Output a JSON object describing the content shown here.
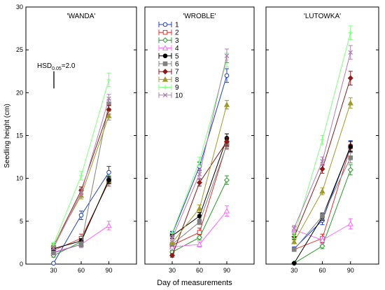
{
  "chart_data": {
    "type": "line",
    "xlabel": "Day of measurements",
    "ylabel": "Seedling height (cm)",
    "x": [
      30,
      60,
      90
    ],
    "x_ticks": [
      "30",
      "60",
      "90"
    ],
    "xlim": [
      0,
      120
    ],
    "ylim": [
      0,
      30
    ],
    "y_ticks": [
      0,
      5,
      10,
      15,
      20,
      25,
      30
    ],
    "grid": false,
    "legend_position": "top-left of middle panel",
    "hsd_label": "HSD0.05=2.0",
    "hsd_value": 2.0,
    "legend_series": [
      {
        "name": "1",
        "color": "#1f3fbf",
        "marker": "circle-open"
      },
      {
        "name": "2",
        "color": "#e03030",
        "marker": "square-open"
      },
      {
        "name": "3",
        "color": "#2a9a2a",
        "marker": "diamond-open"
      },
      {
        "name": "4",
        "color": "#ff66ff",
        "marker": "triangle-open"
      },
      {
        "name": "5",
        "color": "#000000",
        "marker": "circle"
      },
      {
        "name": "6",
        "color": "#808080",
        "marker": "square"
      },
      {
        "name": "7",
        "color": "#8b1a1a",
        "marker": "diamond"
      },
      {
        "name": "8",
        "color": "#a09a2a",
        "marker": "triangle"
      },
      {
        "name": "9",
        "color": "#7fff7f",
        "marker": "plus"
      },
      {
        "name": "10",
        "color": "#b07fb0",
        "marker": "cross"
      }
    ],
    "panels": [
      {
        "title": "'WANDA'",
        "series": [
          {
            "name": "1",
            "values": [
              0.1,
              5.7,
              10.7
            ],
            "err": [
              0.1,
              0.5,
              0.7
            ]
          },
          {
            "name": "2",
            "values": [
              1.6,
              3.0,
              9.6
            ],
            "err": [
              0.2,
              0.5,
              0.5
            ]
          },
          {
            "name": "3",
            "values": [
              1.0,
              2.6,
              9.9
            ],
            "err": [
              0.2,
              0.3,
              0.4
            ]
          },
          {
            "name": "4",
            "values": [
              1.4,
              2.3,
              4.5
            ],
            "err": [
              0.3,
              0.4,
              0.5
            ]
          },
          {
            "name": "5",
            "values": [
              1.8,
              2.7,
              9.8
            ],
            "err": [
              0.2,
              0.3,
              0.4
            ]
          },
          {
            "name": "6",
            "values": [
              1.3,
              2.3,
              18.7
            ],
            "err": [
              0.2,
              0.3,
              0.5
            ]
          },
          {
            "name": "7",
            "values": [
              2.1,
              8.6,
              18.0
            ],
            "err": [
              0.2,
              0.4,
              0.5
            ]
          },
          {
            "name": "8",
            "values": [
              2.2,
              8.0,
              17.3
            ],
            "err": [
              0.2,
              0.4,
              0.5
            ]
          },
          {
            "name": "9",
            "values": [
              2.3,
              10.3,
              21.5
            ],
            "err": [
              0.2,
              0.5,
              0.8
            ]
          },
          {
            "name": "10",
            "values": [
              1.9,
              8.3,
              19.3
            ],
            "err": [
              0.2,
              0.5,
              0.5
            ]
          }
        ]
      },
      {
        "title": "'WROBLE'",
        "series": [
          {
            "name": "1",
            "values": [
              3.5,
              11.4,
              22.0
            ],
            "err": [
              0.3,
              0.5,
              0.8
            ]
          },
          {
            "name": "2",
            "values": [
              2.2,
              3.7,
              14.0
            ],
            "err": [
              0.2,
              0.5,
              0.5
            ]
          },
          {
            "name": "3",
            "values": [
              1.4,
              3.1,
              9.8
            ],
            "err": [
              0.2,
              0.3,
              0.5
            ]
          },
          {
            "name": "4",
            "values": [
              2.0,
              2.3,
              6.2
            ],
            "err": [
              0.2,
              0.3,
              0.6
            ]
          },
          {
            "name": "5",
            "values": [
              3.3,
              5.6,
              14.7
            ],
            "err": [
              0.3,
              0.4,
              0.5
            ]
          },
          {
            "name": "6",
            "values": [
              2.3,
              4.9,
              13.9
            ],
            "err": [
              0.2,
              0.3,
              0.5
            ]
          },
          {
            "name": "7",
            "values": [
              1.0,
              9.5,
              14.3
            ],
            "err": [
              0.2,
              0.4,
              0.5
            ]
          },
          {
            "name": "8",
            "values": [
              2.5,
              6.5,
              18.6
            ],
            "err": [
              0.2,
              0.4,
              0.5
            ]
          },
          {
            "name": "9",
            "values": [
              3.6,
              12.0,
              23.8
            ],
            "err": [
              0.3,
              0.5,
              0.8
            ]
          },
          {
            "name": "10",
            "values": [
              3.0,
              10.5,
              24.3
            ],
            "err": [
              0.3,
              0.5,
              0.8
            ]
          }
        ]
      },
      {
        "title": "'LUTOWKA'",
        "series": [
          {
            "name": "1",
            "values": [
              1.8,
              5.1,
              13.8
            ],
            "err": [
              0.2,
              0.5,
              0.6
            ]
          },
          {
            "name": "2",
            "values": [
              1.7,
              3.0,
              13.7
            ],
            "err": [
              0.2,
              0.5,
              0.6
            ]
          },
          {
            "name": "3",
            "values": [
              0.1,
              2.1,
              11.0
            ],
            "err": [
              0.1,
              0.3,
              0.6
            ]
          },
          {
            "name": "4",
            "values": [
              4.0,
              2.8,
              4.7
            ],
            "err": [
              0.3,
              0.4,
              0.6
            ]
          },
          {
            "name": "5",
            "values": [
              0.1,
              5.5,
              13.7
            ],
            "err": [
              0.1,
              0.4,
              0.6
            ]
          },
          {
            "name": "6",
            "values": [
              1.7,
              5.6,
              12.4
            ],
            "err": [
              0.2,
              0.4,
              0.6
            ]
          },
          {
            "name": "7",
            "values": [
              3.2,
              11.1,
              21.7
            ],
            "err": [
              0.3,
              0.5,
              0.8
            ]
          },
          {
            "name": "8",
            "values": [
              2.6,
              8.5,
              18.8
            ],
            "err": [
              0.2,
              0.4,
              0.6
            ]
          },
          {
            "name": "9",
            "values": [
              3.3,
              14.5,
              27.0
            ],
            "err": [
              0.3,
              0.5,
              0.8
            ]
          },
          {
            "name": "10",
            "values": [
              4.2,
              12.0,
              24.7
            ],
            "err": [
              0.3,
              0.5,
              0.8
            ]
          }
        ]
      }
    ]
  }
}
